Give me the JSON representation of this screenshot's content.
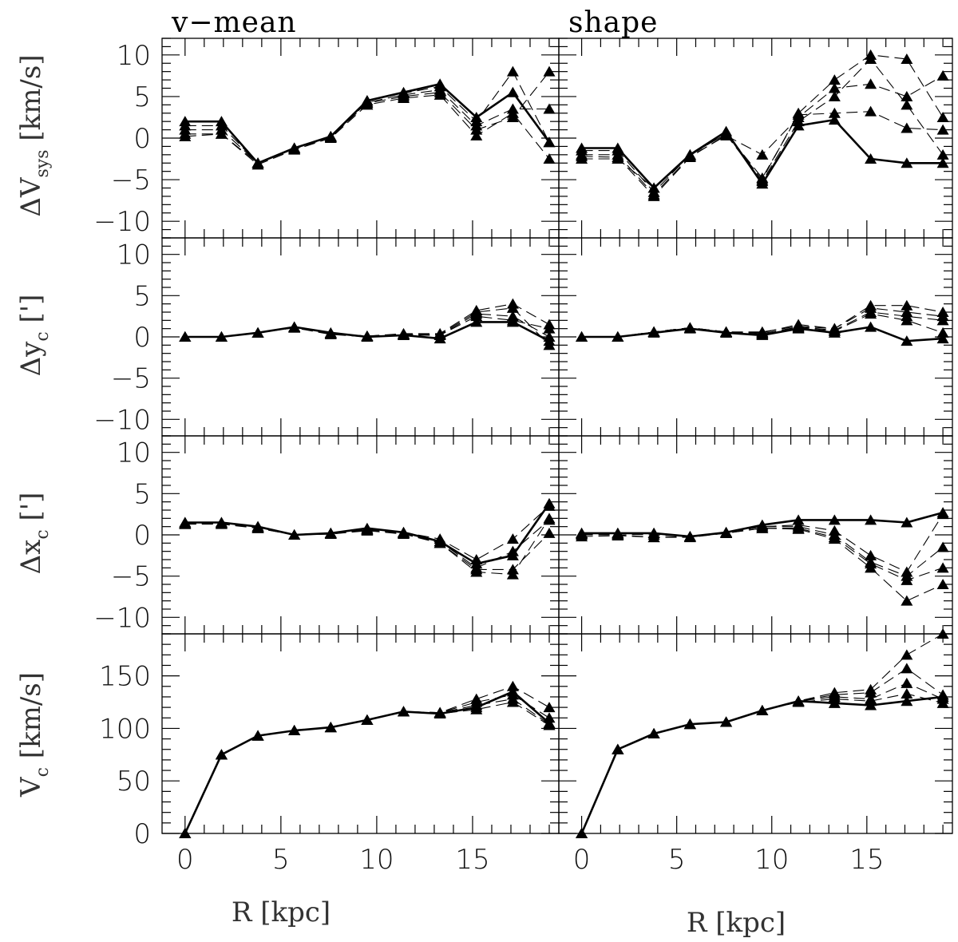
{
  "titles": [
    "v−mean",
    "shape"
  ],
  "xlabels": [
    "R [kpc]",
    "R [kpc]"
  ],
  "ylabels": [
    "ΔV",
    "sys",
    " [km/s]",
    "Δy",
    "c",
    " [']",
    "Δx",
    "c",
    " [']",
    "V",
    "c",
    " [km/s]"
  ],
  "chart_data": [
    {
      "type": "line",
      "title": "v−mean",
      "xlabel": "",
      "ylabel": "ΔV_sys [km/s]",
      "xlim": [
        -1.2,
        19.5
      ],
      "ylim": [
        -12,
        12
      ],
      "x": [
        0,
        1.9,
        3.8,
        5.7,
        7.6,
        9.5,
        11.4,
        13.3,
        15.2,
        17.1,
        19.0
      ],
      "yticks": [
        -10,
        -5,
        0,
        5,
        10
      ],
      "solid": [
        2,
        2,
        -3,
        -1.2,
        0.2,
        4.5,
        5.5,
        6.5,
        2.5,
        5.5,
        -0.5
      ],
      "dashed": [
        [
          1.5,
          1.5,
          -3,
          -1.2,
          0.2,
          4.5,
          5.4,
          6.2,
          2.0,
          8.0,
          -0.5
        ],
        [
          1.0,
          1.0,
          -3,
          -1.2,
          0.1,
          4.3,
          5.2,
          5.8,
          1.5,
          3.5,
          3.5
        ],
        [
          0.5,
          0.5,
          -3,
          -1.3,
          0.1,
          4.2,
          5.0,
          5.5,
          1.0,
          2.5,
          8.0
        ],
        [
          0.2,
          0.5,
          -3.2,
          -1.4,
          0.0,
          4.0,
          4.8,
          5.2,
          0.3,
          3.0,
          -2.5
        ]
      ]
    },
    {
      "type": "line",
      "title": "shape",
      "xlabel": "",
      "ylabel": "ΔV_sys [km/s]",
      "xlim": [
        -1.2,
        19.5
      ],
      "ylim": [
        -12,
        12
      ],
      "x": [
        0,
        1.9,
        3.8,
        5.7,
        7.6,
        9.5,
        11.4,
        13.3,
        15.2,
        17.1,
        19.0
      ],
      "yticks": [
        -10,
        -5,
        0,
        5,
        10
      ],
      "solid": [
        -1.2,
        -1.2,
        -6.0,
        -2.0,
        0.8,
        -5.5,
        1.5,
        2.2,
        -2.5,
        -3.0,
        -3.0
      ],
      "dashed": [
        [
          -1.5,
          -1.5,
          -6.5,
          -2.0,
          0.5,
          -5.0,
          3.0,
          7.0,
          10.0,
          9.5,
          2.5
        ],
        [
          -2.0,
          -2.0,
          -6.8,
          -2.2,
          0.3,
          -2.0,
          2.5,
          6.0,
          6.5,
          5.0,
          7.5
        ],
        [
          -2.2,
          -2.3,
          -7.0,
          -2.3,
          0.4,
          -5.2,
          2.0,
          5.0,
          9.5,
          4.0,
          -2.0
        ],
        [
          -2.5,
          -2.5,
          -6.0,
          -2.1,
          0.6,
          -4.8,
          2.8,
          3.0,
          3.2,
          1.2,
          1.0
        ]
      ]
    },
    {
      "type": "line",
      "title": "",
      "xlabel": "",
      "ylabel": "Δy_c [']",
      "xlim": [
        -1.2,
        19.5
      ],
      "ylim": [
        -12,
        12
      ],
      "x": [
        0,
        1.9,
        3.8,
        5.7,
        7.6,
        9.5,
        11.4,
        13.3,
        15.2,
        17.1,
        19.0
      ],
      "yticks": [
        -10,
        -5,
        0,
        5,
        10
      ],
      "solid": [
        0,
        0,
        0.5,
        1.2,
        0.5,
        0,
        0.2,
        -0.2,
        1.8,
        1.8,
        -0.5
      ],
      "dashed": [
        [
          0,
          0,
          0.5,
          1.2,
          0.4,
          0.1,
          0.4,
          0.4,
          3.2,
          4.0,
          1.5
        ],
        [
          0,
          0,
          0.5,
          1.2,
          0.4,
          0.1,
          0.3,
          0.3,
          3.0,
          3.5,
          -1.0
        ],
        [
          0,
          0,
          0.5,
          1.1,
          0.4,
          0.1,
          0.3,
          0.2,
          2.8,
          2.5,
          0.0
        ],
        [
          0,
          0,
          0.5,
          1.1,
          0.3,
          0.0,
          0.2,
          0.2,
          2.5,
          2.0,
          1.0
        ]
      ]
    },
    {
      "type": "line",
      "title": "",
      "xlabel": "",
      "ylabel": "Δy_c [']",
      "xlim": [
        -1.2,
        19.5
      ],
      "ylim": [
        -12,
        12
      ],
      "x": [
        0,
        1.9,
        3.8,
        5.7,
        7.6,
        9.5,
        11.4,
        13.3,
        15.2,
        17.1,
        19.0
      ],
      "yticks": [
        -10,
        -5,
        0,
        5,
        10
      ],
      "solid": [
        0,
        0,
        0.5,
        1.0,
        0.5,
        0.2,
        1.0,
        0.5,
        1.2,
        -0.5,
        -0.2
      ],
      "dashed": [
        [
          0,
          0,
          0.6,
          1.1,
          0.6,
          0.5,
          1.5,
          1.0,
          3.8,
          3.8,
          3.0
        ],
        [
          0,
          0,
          0.6,
          1.1,
          0.6,
          0.6,
          1.3,
          1.0,
          3.5,
          3.0,
          2.5
        ],
        [
          0,
          0,
          0.6,
          1.1,
          0.6,
          0.4,
          1.2,
          0.8,
          3.0,
          2.5,
          2.0
        ],
        [
          0,
          0,
          0.6,
          1.1,
          0.5,
          0.3,
          1.1,
          0.7,
          2.8,
          2.0,
          0.5
        ]
      ]
    },
    {
      "type": "line",
      "title": "",
      "xlabel": "",
      "ylabel": "Δx_c [']",
      "xlim": [
        -1.2,
        19.5
      ],
      "ylim": [
        -12,
        12
      ],
      "x": [
        0,
        1.9,
        3.8,
        5.7,
        7.6,
        9.5,
        11.4,
        13.3,
        15.2,
        17.1,
        19.0
      ],
      "yticks": [
        -10,
        -5,
        0,
        5,
        10
      ],
      "solid": [
        1.5,
        1.5,
        1.0,
        0.0,
        0.2,
        0.8,
        0.3,
        -0.8,
        -3.5,
        -2.5,
        3.8
      ],
      "dashed": [
        [
          1.5,
          1.5,
          1.0,
          0.0,
          0.2,
          0.7,
          0.3,
          -0.5,
          -3.0,
          -0.5,
          3.5
        ],
        [
          1.4,
          1.4,
          0.9,
          0.0,
          0.2,
          0.6,
          0.2,
          -0.8,
          -4.0,
          -2.0,
          1.8
        ],
        [
          1.3,
          1.4,
          0.8,
          0.0,
          0.1,
          0.6,
          0.2,
          -1.0,
          -4.2,
          -4.2,
          0.2
        ],
        [
          1.3,
          1.3,
          0.8,
          0.0,
          0.1,
          0.5,
          0.1,
          -1.0,
          -4.5,
          -4.8,
          2.0
        ]
      ]
    },
    {
      "type": "line",
      "title": "",
      "xlabel": "",
      "ylabel": "Δx_c [']",
      "xlim": [
        -1.2,
        19.5
      ],
      "ylim": [
        -12,
        12
      ],
      "x": [
        0,
        1.9,
        3.8,
        5.7,
        7.6,
        9.5,
        11.4,
        13.3,
        15.2,
        17.1,
        19.0
      ],
      "yticks": [
        -10,
        -5,
        0,
        5,
        10
      ],
      "solid": [
        0.2,
        0.2,
        0.2,
        -0.2,
        0.3,
        1.2,
        1.8,
        1.8,
        1.8,
        1.5,
        2.7
      ],
      "dashed": [
        [
          0.2,
          0.2,
          0.2,
          -0.2,
          0.3,
          1.0,
          1.2,
          0.5,
          -2.5,
          -4.5,
          2.5
        ],
        [
          0.1,
          0.1,
          0.0,
          -0.2,
          0.2,
          1.0,
          1.0,
          0.0,
          -3.3,
          -5.0,
          -1.5
        ],
        [
          0.0,
          0.0,
          -0.3,
          -0.2,
          0.2,
          0.8,
          0.8,
          -0.3,
          -3.5,
          -5.5,
          -4.0
        ],
        [
          -0.2,
          -0.1,
          -0.3,
          -0.3,
          0.2,
          0.8,
          0.7,
          -0.5,
          -4.0,
          -8.0,
          -6.0
        ]
      ]
    },
    {
      "type": "line",
      "title": "",
      "xlabel": "R [kpc]",
      "ylabel": "V_c [km/s]",
      "xlim": [
        -1.2,
        19.5
      ],
      "ylim": [
        0,
        190
      ],
      "x": [
        0,
        1.9,
        3.8,
        5.7,
        7.6,
        9.5,
        11.4,
        13.3,
        15.2,
        17.1,
        19.0
      ],
      "xticks": [
        0,
        5,
        10,
        15
      ],
      "yticks": [
        0,
        50,
        100,
        150
      ],
      "solid": [
        0,
        75,
        93,
        98,
        101,
        108,
        116,
        114,
        120,
        135,
        105
      ],
      "dashed": [
        [
          0,
          75,
          93,
          98,
          101,
          108,
          116,
          115,
          128,
          140,
          120
        ],
        [
          0,
          75,
          93,
          98,
          101,
          108,
          116,
          115,
          125,
          132,
          110
        ],
        [
          0,
          75,
          93,
          98,
          101,
          108,
          116,
          115,
          122,
          128,
          104
        ],
        [
          0,
          75,
          93,
          98,
          101,
          108,
          116,
          114,
          118,
          125,
          103
        ]
      ]
    },
    {
      "type": "line",
      "title": "",
      "xlabel": "R [kpc]",
      "ylabel": "V_c [km/s]",
      "xlim": [
        -1.2,
        19.5
      ],
      "ylim": [
        0,
        190
      ],
      "x": [
        0,
        1.9,
        3.8,
        5.7,
        7.6,
        9.5,
        11.4,
        13.3,
        15.2,
        17.1,
        19.0
      ],
      "xticks": [
        0,
        5,
        10,
        15
      ],
      "yticks": [
        0,
        50,
        100,
        150
      ],
      "solid": [
        0,
        80,
        95,
        104,
        106,
        117,
        126,
        124,
        122,
        126,
        130
      ],
      "dashed": [
        [
          0,
          80,
          95,
          104,
          106,
          117,
          126,
          134,
          137,
          170,
          190
        ],
        [
          0,
          80,
          95,
          104,
          106,
          117,
          126,
          132,
          134,
          157,
          132
        ],
        [
          0,
          80,
          95,
          104,
          106,
          117,
          126,
          130,
          128,
          143,
          128
        ],
        [
          0,
          80,
          95,
          104,
          106,
          117,
          125,
          128,
          126,
          133,
          124
        ]
      ]
    }
  ]
}
